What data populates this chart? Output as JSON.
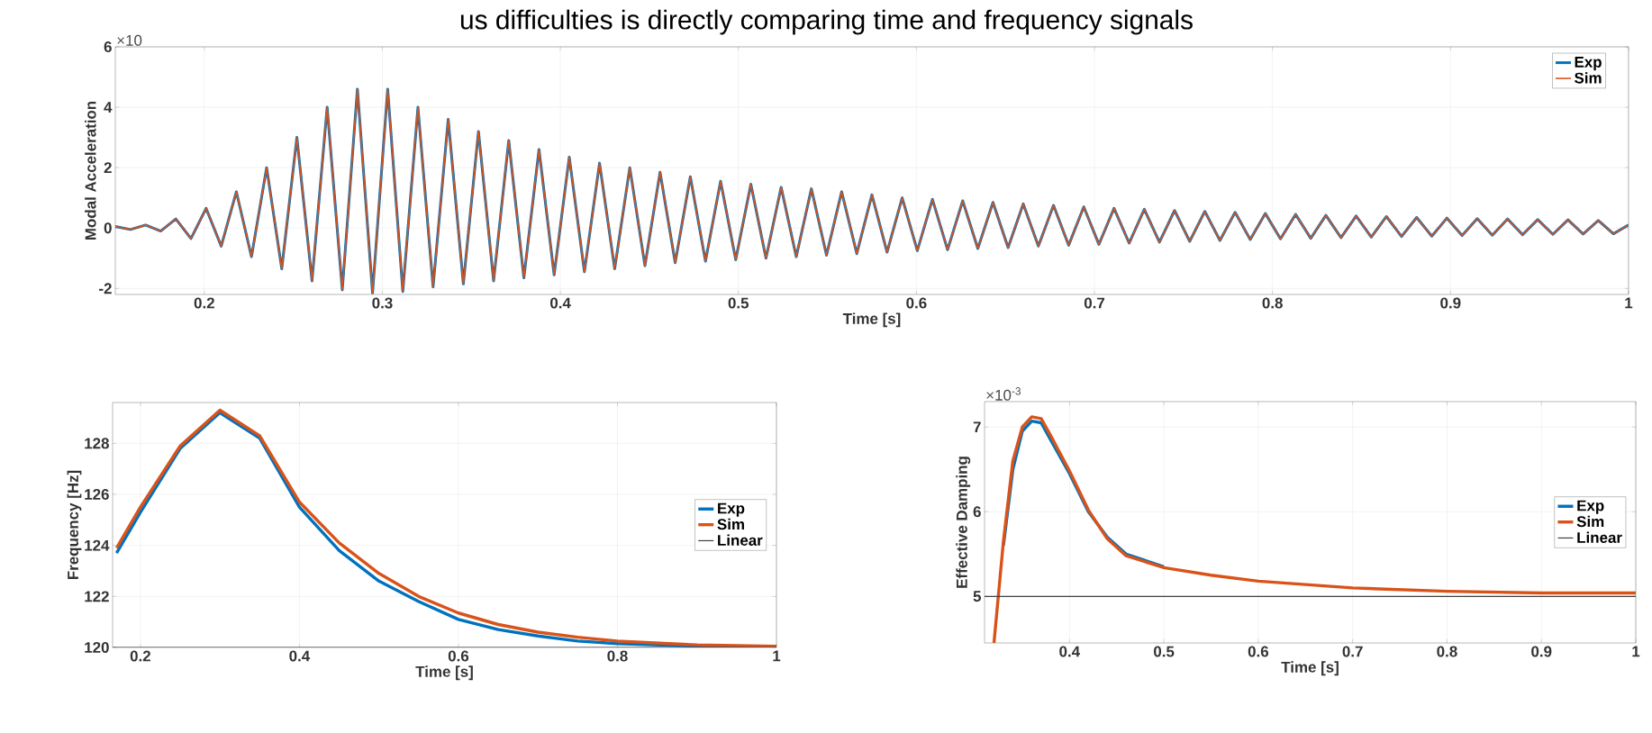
{
  "chart_data": [
    {
      "type": "line",
      "title": "us difficulties is directly comparing time and frequency signals",
      "xlabel": "Time [s]",
      "ylabel": "Modal Acceleration",
      "annotations": [
        "×10"
      ],
      "xlim": [
        0.15,
        1
      ],
      "ylim": [
        -2.2,
        6
      ],
      "xticks": [
        0.2,
        0.3,
        0.4,
        0.5,
        0.6,
        0.7,
        0.8,
        0.9,
        1
      ],
      "yticks": [
        -2,
        0,
        2,
        4,
        6
      ],
      "grid": true,
      "legend": "top right",
      "x": [
        0.15,
        0.1585,
        0.167,
        0.1755,
        0.184,
        0.1925,
        0.201,
        0.2095,
        0.218,
        0.2265,
        0.235,
        0.2435,
        0.252,
        0.2605,
        0.269,
        0.2775,
        0.286,
        0.2945,
        0.303,
        0.3115,
        0.32,
        0.3285,
        0.337,
        0.3455,
        0.354,
        0.3625,
        0.371,
        0.3795,
        0.388,
        0.3965,
        0.405,
        0.4135,
        0.422,
        0.4305,
        0.439,
        0.4475,
        0.456,
        0.4645,
        0.473,
        0.4815,
        0.49,
        0.4985,
        0.507,
        0.5155,
        0.524,
        0.5325,
        0.541,
        0.5495,
        0.558,
        0.5665,
        0.575,
        0.5835,
        0.592,
        0.6005,
        0.609,
        0.6175,
        0.626,
        0.6345,
        0.643,
        0.6515,
        0.66,
        0.6685,
        0.677,
        0.6855,
        0.694,
        0.7025,
        0.711,
        0.7195,
        0.728,
        0.7365,
        0.745,
        0.7535,
        0.762,
        0.7705,
        0.779,
        0.7875,
        0.796,
        0.8045,
        0.813,
        0.8215,
        0.83,
        0.8385,
        0.847,
        0.8555,
        0.864,
        0.8725,
        0.881,
        0.8895,
        0.898,
        0.9065,
        0.915,
        0.9235,
        0.932,
        0.9405,
        0.949,
        0.9575,
        0.966,
        0.9745,
        0.983,
        0.9915,
        1.0
      ],
      "series": [
        {
          "name": "Exp",
          "color": "#0072bd",
          "values": [
            0.05,
            -0.05,
            0.1,
            -0.1,
            0.3,
            -0.35,
            0.65,
            -0.6,
            1.2,
            -0.95,
            2.0,
            -1.35,
            3.0,
            -1.75,
            4.0,
            -2.05,
            4.6,
            -2.15,
            4.6,
            -2.1,
            4.0,
            -1.95,
            3.6,
            -1.85,
            3.2,
            -1.75,
            2.9,
            -1.65,
            2.6,
            -1.55,
            2.35,
            -1.45,
            2.15,
            -1.35,
            2.0,
            -1.25,
            1.85,
            -1.15,
            1.7,
            -1.1,
            1.55,
            -1.05,
            1.45,
            -1.0,
            1.35,
            -0.95,
            1.3,
            -0.9,
            1.2,
            -0.85,
            1.1,
            -0.8,
            1.0,
            -0.75,
            0.95,
            -0.72,
            0.9,
            -0.68,
            0.85,
            -0.65,
            0.8,
            -0.6,
            0.75,
            -0.57,
            0.7,
            -0.54,
            0.65,
            -0.5,
            0.62,
            -0.47,
            0.58,
            -0.44,
            0.55,
            -0.41,
            0.52,
            -0.38,
            0.48,
            -0.36,
            0.45,
            -0.34,
            0.42,
            -0.32,
            0.4,
            -0.3,
            0.38,
            -0.28,
            0.35,
            -0.27,
            0.33,
            -0.25,
            0.31,
            -0.24,
            0.3,
            -0.22,
            0.28,
            -0.21,
            0.27,
            -0.2,
            0.25,
            -0.19,
            0.1
          ]
        },
        {
          "name": "Sim",
          "color": "#d95319",
          "values": [
            0.05,
            -0.05,
            0.1,
            -0.1,
            0.3,
            -0.35,
            0.65,
            -0.6,
            1.2,
            -0.95,
            2.0,
            -1.35,
            3.0,
            -1.75,
            4.0,
            -2.05,
            4.6,
            -2.15,
            4.6,
            -2.1,
            4.0,
            -1.95,
            3.6,
            -1.85,
            3.2,
            -1.75,
            2.9,
            -1.65,
            2.6,
            -1.55,
            2.35,
            -1.45,
            2.15,
            -1.35,
            2.0,
            -1.25,
            1.85,
            -1.15,
            1.7,
            -1.1,
            1.55,
            -1.05,
            1.45,
            -1.0,
            1.35,
            -0.95,
            1.3,
            -0.9,
            1.2,
            -0.85,
            1.1,
            -0.8,
            1.0,
            -0.75,
            0.95,
            -0.72,
            0.9,
            -0.68,
            0.85,
            -0.65,
            0.8,
            -0.6,
            0.75,
            -0.57,
            0.7,
            -0.54,
            0.65,
            -0.5,
            0.62,
            -0.47,
            0.58,
            -0.44,
            0.55,
            -0.41,
            0.52,
            -0.38,
            0.48,
            -0.36,
            0.45,
            -0.34,
            0.42,
            -0.32,
            0.4,
            -0.3,
            0.38,
            -0.28,
            0.35,
            -0.27,
            0.33,
            -0.25,
            0.31,
            -0.24,
            0.3,
            -0.22,
            0.28,
            -0.21,
            0.27,
            -0.2,
            0.25,
            -0.19,
            0.1
          ]
        }
      ]
    },
    {
      "type": "line",
      "xlabel": "Time [s]",
      "ylabel": "Frequency [Hz]",
      "xlim": [
        0.165,
        1
      ],
      "ylim": [
        120,
        129.6
      ],
      "xticks": [
        0.2,
        0.4,
        0.6,
        0.8,
        1
      ],
      "yticks": [
        120,
        122,
        124,
        126,
        128
      ],
      "grid": true,
      "legend": "right",
      "x": [
        0.17,
        0.2,
        0.25,
        0.3,
        0.35,
        0.4,
        0.45,
        0.5,
        0.55,
        0.6,
        0.65,
        0.7,
        0.75,
        0.8,
        0.9,
        1.0
      ],
      "series": [
        {
          "name": "Exp",
          "color": "#0072bd",
          "values": [
            123.7,
            125.3,
            127.8,
            129.2,
            128.2,
            125.5,
            123.8,
            122.6,
            121.8,
            121.1,
            120.7,
            120.45,
            120.25,
            120.15,
            120.05,
            120.02
          ]
        },
        {
          "name": "Sim",
          "color": "#d95319",
          "values": [
            123.9,
            125.5,
            127.9,
            129.3,
            128.3,
            125.7,
            124.1,
            122.9,
            122.0,
            121.35,
            120.9,
            120.6,
            120.4,
            120.25,
            120.1,
            120.05
          ]
        },
        {
          "name": "Linear",
          "color": "#404040",
          "x": [
            0.165,
            1
          ],
          "values": [
            120,
            120
          ]
        }
      ]
    },
    {
      "type": "line",
      "xlabel": "Time [s]",
      "ylabel": "Effective Damping",
      "annotations": [
        "×10$^{-3}$"
      ],
      "xlim": [
        0.31,
        1
      ],
      "ylim": [
        4.45,
        7.3
      ],
      "xticks": [
        0.4,
        0.5,
        0.6,
        0.7,
        0.8,
        0.9,
        1
      ],
      "yticks": [
        5,
        6,
        7
      ],
      "grid": true,
      "legend": "right",
      "x": [
        0.32,
        0.33,
        0.34,
        0.35,
        0.36,
        0.37,
        0.38,
        0.4,
        0.42,
        0.44,
        0.46,
        0.5,
        0.55,
        0.6,
        0.7,
        0.8,
        0.9,
        1.0
      ],
      "series": [
        {
          "name": "Exp",
          "color": "#0072bd",
          "values": [
            null,
            5.6,
            6.5,
            6.95,
            7.07,
            7.05,
            6.85,
            6.45,
            6.0,
            5.7,
            5.5,
            5.35,
            null,
            null,
            null,
            null,
            null,
            null
          ]
        },
        {
          "name": "Sim",
          "color": "#d95319",
          "values": [
            4.45,
            5.65,
            6.6,
            7.0,
            7.12,
            7.1,
            6.9,
            6.48,
            6.02,
            5.68,
            5.48,
            5.34,
            5.25,
            5.18,
            5.1,
            5.06,
            5.04,
            5.04
          ]
        },
        {
          "name": "Linear",
          "color": "#404040",
          "x": [
            0.31,
            1
          ],
          "values": [
            5,
            5
          ]
        }
      ]
    }
  ]
}
